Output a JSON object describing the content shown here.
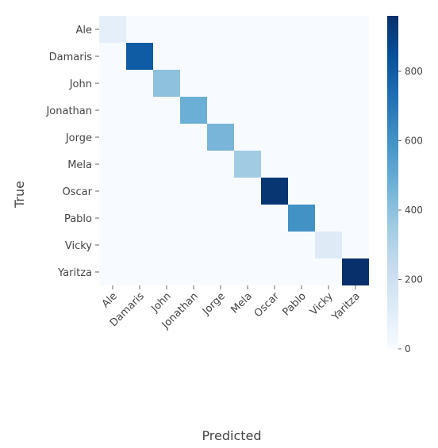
{
  "chart_data": {
    "type": "heatmap",
    "title": "",
    "xlabel": "Predicted",
    "ylabel": "True",
    "x_categories": [
      "Ale",
      "Damaris",
      "John",
      "Jonathan",
      "Jorge",
      "Mela",
      "Oscar",
      "Pablo",
      "Vicky",
      "Yaritza"
    ],
    "y_categories": [
      "Ale",
      "Damaris",
      "John",
      "Jonathan",
      "Jorge",
      "Mela",
      "Oscar",
      "Pablo",
      "Vicky",
      "Yaritza"
    ],
    "values": [
      [
        90,
        0,
        0,
        0,
        0,
        0,
        0,
        0,
        0,
        0
      ],
      [
        0,
        800,
        0,
        0,
        0,
        0,
        0,
        0,
        0,
        0
      ],
      [
        0,
        0,
        400,
        0,
        0,
        0,
        0,
        0,
        0,
        0
      ],
      [
        0,
        0,
        0,
        480,
        0,
        0,
        0,
        0,
        0,
        0
      ],
      [
        0,
        0,
        0,
        0,
        450,
        0,
        0,
        0,
        0,
        0
      ],
      [
        0,
        0,
        0,
        0,
        0,
        350,
        0,
        0,
        0,
        0
      ],
      [
        0,
        0,
        0,
        0,
        0,
        0,
        940,
        0,
        0,
        0
      ],
      [
        0,
        0,
        0,
        0,
        0,
        0,
        0,
        600,
        0,
        0
      ],
      [
        0,
        0,
        0,
        0,
        0,
        0,
        0,
        0,
        120,
        0
      ],
      [
        0,
        0,
        0,
        0,
        0,
        0,
        0,
        0,
        0,
        960
      ]
    ],
    "colormap": "Blues",
    "colorbar": {
      "min": 0,
      "max": 960,
      "ticks": [
        0,
        200,
        400,
        600,
        800
      ],
      "tick_labels": [
        "0",
        "200",
        "400",
        "600",
        "800"
      ]
    },
    "grid": false,
    "legend": "colorbar-right"
  }
}
